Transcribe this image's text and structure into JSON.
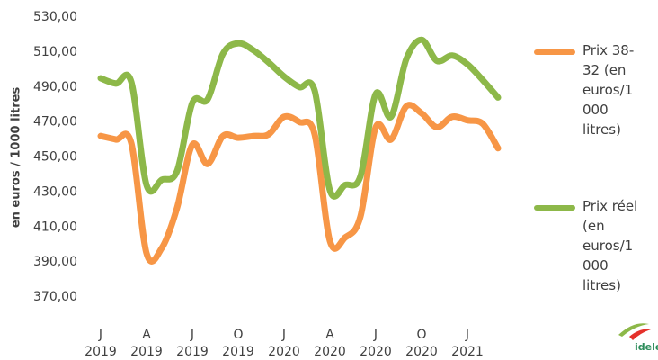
{
  "chart_data": {
    "type": "line",
    "y_label": "en euros / 1000 litres",
    "categories": [
      "J",
      null,
      null,
      "A",
      null,
      null,
      "J",
      null,
      null,
      "O",
      null,
      null,
      "J",
      null,
      null,
      "A",
      null,
      null,
      "J",
      null,
      null,
      "O",
      null,
      null,
      "J",
      null,
      null
    ],
    "category_years": [
      "2019",
      null,
      null,
      "2019",
      null,
      null,
      "2019",
      null,
      null,
      "2019",
      null,
      null,
      "2020",
      null,
      null,
      "2020",
      null,
      null,
      "2020",
      null,
      null,
      "2020",
      null,
      null,
      "2021",
      null,
      null
    ],
    "series": [
      {
        "name": "Prix 38-32 (en euros/1000 litres)",
        "color": "#f79646",
        "values": [
          462,
          460,
          458,
          395,
          398,
          421,
          457,
          446,
          462,
          461,
          462,
          463,
          473,
          470,
          463,
          402,
          404,
          416,
          467,
          460,
          479,
          475,
          467,
          473,
          471,
          469,
          455
        ]
      },
      {
        "name": "Prix réel (en euros/1000 litres)",
        "color": "#8db849",
        "values": [
          495,
          492,
          493,
          434,
          437,
          442,
          481,
          483,
          509,
          515,
          511,
          504,
          496,
          490,
          488,
          431,
          434,
          439,
          486,
          473,
          506,
          517,
          505,
          508,
          503,
          494,
          484
        ]
      }
    ],
    "ylim": [
      370,
      530
    ],
    "yticks": [
      {
        "value": 370,
        "label": "370,00"
      },
      {
        "value": 390,
        "label": "390,00"
      },
      {
        "value": 410,
        "label": "410,00"
      },
      {
        "value": 430,
        "label": "430,00"
      },
      {
        "value": 450,
        "label": "450,00"
      },
      {
        "value": 470,
        "label": "470,00"
      },
      {
        "value": 490,
        "label": "490,00"
      },
      {
        "value": 510,
        "label": "510,00"
      },
      {
        "value": 530,
        "label": "530,00"
      }
    ],
    "grid": false,
    "logo_text": "idele"
  }
}
